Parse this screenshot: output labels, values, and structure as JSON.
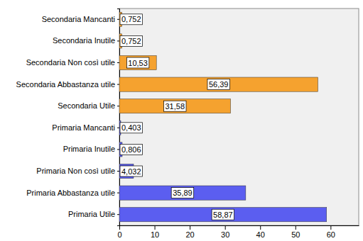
{
  "chart_data": {
    "type": "bar",
    "orientation": "horizontal",
    "categories": [
      "Secondaria Mancanti",
      "Secondaria Inutile",
      "Secondaria Non così utile",
      "Secondaria Abbastanza utile",
      "Secondaria Utile",
      "Primaria Mancanti",
      "Primaria Inutile",
      "Primaria Non così utile",
      "Primaria Abbastanza utile",
      "Primaria Utile"
    ],
    "values": [
      0.752,
      0.752,
      10.53,
      56.39,
      31.58,
      0.403,
      0.806,
      4.032,
      35.89,
      58.87
    ],
    "value_labels": [
      "0,752",
      "0,752",
      "10,53",
      "56,39",
      "31,58",
      "0,403",
      "0,806",
      "4,032",
      "35,89",
      "58,87"
    ],
    "colors": [
      "#f5a22f",
      "#f5a22f",
      "#f5a22f",
      "#f5a22f",
      "#f5a22f",
      "#5b5ef0",
      "#5b5ef0",
      "#5b5ef0",
      "#5b5ef0",
      "#5b5ef0"
    ],
    "xlim": [
      0,
      68
    ],
    "xticks": [
      0,
      10,
      20,
      30,
      40,
      50,
      60
    ],
    "data_labels": true,
    "grid": false
  }
}
